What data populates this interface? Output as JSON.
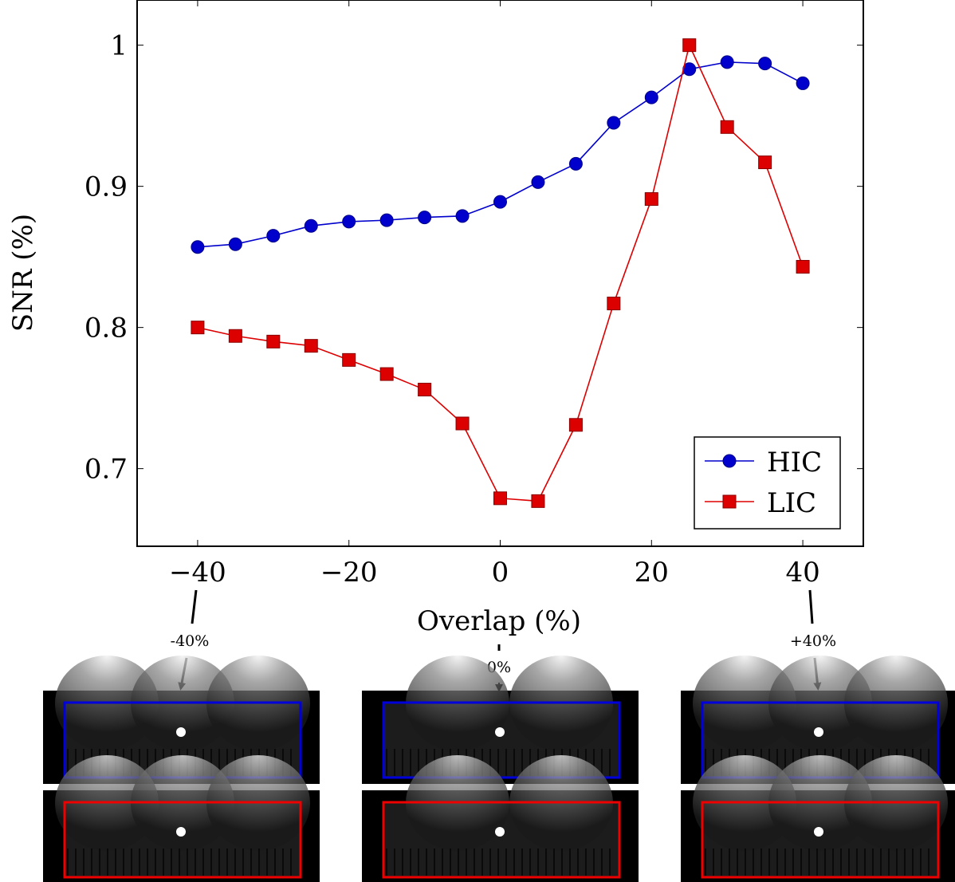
{
  "chart_data": {
    "type": "line",
    "title": "",
    "xlabel": "Overlap (%)",
    "ylabel": "SNR (%)",
    "xlim": [
      -48,
      48
    ],
    "ylim": [
      0.645,
      1.032
    ],
    "xticks": [
      -40,
      -20,
      0,
      20,
      40
    ],
    "xtick_labels": [
      "−40",
      "−20",
      "0",
      "20",
      "40"
    ],
    "yticks": [
      0.7,
      0.8,
      0.9,
      1.0
    ],
    "ytick_labels": [
      "0.7",
      "0.8",
      "0.9",
      "1"
    ],
    "x": [
      -40,
      -35,
      -30,
      -25,
      -20,
      -15,
      -10,
      -5,
      0,
      5,
      10,
      15,
      20,
      25,
      30,
      35,
      40
    ],
    "series": [
      {
        "name": "HIC",
        "color": "#0000cc",
        "marker": "circle",
        "values": [
          0.857,
          0.859,
          0.865,
          0.872,
          0.875,
          0.876,
          0.878,
          0.879,
          0.889,
          0.903,
          0.916,
          0.945,
          0.963,
          0.983,
          0.988,
          0.987,
          0.973
        ]
      },
      {
        "name": "LIC",
        "color": "#dd0000",
        "marker": "square",
        "values": [
          0.8,
          0.794,
          0.79,
          0.787,
          0.777,
          0.767,
          0.756,
          0.732,
          0.679,
          0.677,
          0.731,
          0.817,
          0.891,
          1.0,
          0.942,
          0.917,
          0.843
        ]
      }
    ],
    "legend": {
      "position": "bottom-right",
      "entries": [
        "HIC",
        "LIC"
      ]
    }
  },
  "thumbnails": [
    {
      "label": "-40%",
      "x_value": -40
    },
    {
      "label": "0%",
      "x_value": 0
    },
    {
      "label": "+40%",
      "x_value": 40
    }
  ]
}
